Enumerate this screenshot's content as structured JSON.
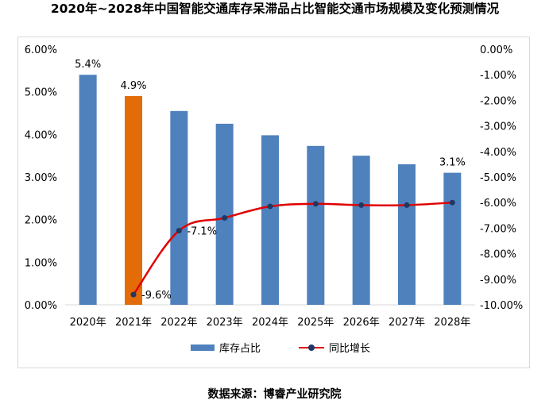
{
  "title": "2020年~2028年中国智能交通库存呆滞品占比智能交通市场规模及变化预测情况",
  "source": "数据来源：博睿产业研究院",
  "chart_data": {
    "type": "bar",
    "categories": [
      "2020年",
      "2021年",
      "2022年",
      "2023年",
      "2024年",
      "2025年",
      "2026年",
      "2027年",
      "2028年"
    ],
    "series": [
      {
        "name": "库存占比",
        "type": "bar",
        "axis": "left",
        "color": "#4f81bd",
        "highlight": {
          "index": 1,
          "color": "#e36c09"
        },
        "values": [
          5.4,
          4.9,
          4.55,
          4.25,
          3.98,
          3.73,
          3.5,
          3.3,
          3.1
        ],
        "data_labels": [
          "5.4%",
          "4.9%",
          "",
          "",
          "",
          "",
          "",
          "",
          "3.1%"
        ]
      },
      {
        "name": "同比增长",
        "type": "line",
        "axis": "right",
        "color": "#e00000",
        "marker_color": "#1f3864",
        "values": [
          null,
          -9.6,
          -7.1,
          -6.6,
          -6.15,
          -6.05,
          -6.1,
          -6.1,
          -6.0
        ],
        "data_labels": [
          "",
          "-9.6%",
          "-7.1%",
          "",
          "",
          "",
          "",
          "",
          ""
        ]
      }
    ],
    "y_left": {
      "min": 0,
      "max": 6,
      "step": 1,
      "ticks": [
        "0.00%",
        "1.00%",
        "2.00%",
        "3.00%",
        "4.00%",
        "5.00%",
        "6.00%"
      ]
    },
    "y_right": {
      "min": -10,
      "max": 0,
      "step": 1,
      "ticks": [
        "-10.00%",
        "-9.00%",
        "-8.00%",
        "-7.00%",
        "-6.00%",
        "-5.00%",
        "-4.00%",
        "-3.00%",
        "-2.00%",
        "-1.00%",
        "0.00%"
      ]
    },
    "grid": false,
    "legend_position": "bottom"
  }
}
